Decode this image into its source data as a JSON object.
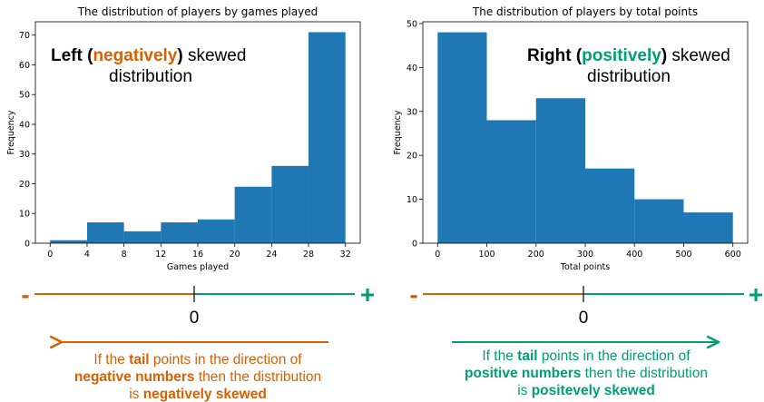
{
  "colors": {
    "bar": "#1f77b4",
    "negative": "#d95f02",
    "positive": "#009e73",
    "text": "#000000"
  },
  "chart_data": [
    {
      "type": "bar",
      "title": "The distribution of players by games played",
      "xlabel": "Games played",
      "ylabel": "Frequency",
      "bin_edges": [
        0,
        4,
        8,
        12,
        16,
        20,
        24,
        28,
        32
      ],
      "values": [
        1,
        7,
        4,
        7,
        8,
        19,
        26,
        71
      ],
      "xlim": [
        -1.6,
        33.6
      ],
      "ylim": [
        0,
        74.5
      ],
      "xticks": [
        0,
        4,
        8,
        12,
        16,
        20,
        24,
        28,
        32
      ],
      "yticks": [
        0,
        10,
        20,
        30,
        40,
        50,
        60,
        70
      ],
      "annotation": {
        "prefix": "Left (",
        "highlight": "negatively",
        "suffix": ") skewed",
        "line2": "distribution"
      }
    },
    {
      "type": "bar",
      "title": "The distribution of players by total points",
      "xlabel": "Total points",
      "ylabel": "Frequency",
      "bin_edges": [
        0,
        100,
        200,
        300,
        400,
        500,
        600
      ],
      "values": [
        48,
        28,
        33,
        17,
        10,
        7
      ],
      "xlim": [
        -30,
        630
      ],
      "ylim": [
        0,
        50.4
      ],
      "xticks": [
        0,
        100,
        200,
        300,
        400,
        500,
        600
      ],
      "yticks": [
        0,
        10,
        20,
        30,
        40,
        50
      ],
      "annotation": {
        "prefix": "Right (",
        "highlight": "positively",
        "suffix": ") skewed",
        "line2": "distribution"
      }
    }
  ],
  "number_lines": {
    "minus": "-",
    "plus": "+",
    "zero": "0"
  },
  "notes": {
    "left": {
      "l1_a": "If the ",
      "l1_b": "tail",
      "l1_c": " points in the direction of",
      "l2_a": "negative numbers",
      "l2_b": " then the distribution",
      "l3_a": "is ",
      "l3_b": "negatively skewed"
    },
    "right": {
      "l1_a": "If the ",
      "l1_b": "tail",
      "l1_c": " points in the direction of",
      "l2_a": "positive numbers",
      "l2_b": " then the distribution",
      "l3_a": "is ",
      "l3_b": "positevely skewed"
    }
  }
}
